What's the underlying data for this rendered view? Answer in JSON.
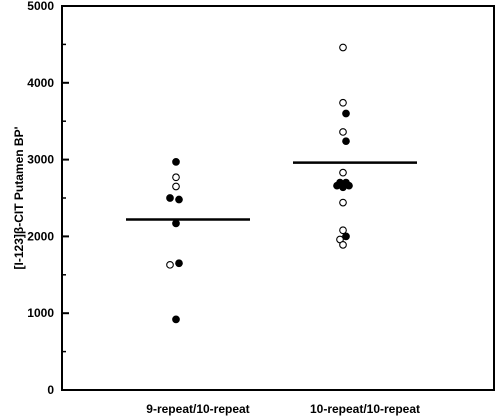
{
  "chart_data": {
    "type": "scatter",
    "title": "",
    "ylabel": "[I-123]β-CIT Putamen BP'",
    "xlabel": "",
    "ylim": [
      0,
      5000
    ],
    "yticks": [
      0,
      1000,
      2000,
      3000,
      4000,
      5000
    ],
    "ytick_labels": [
      "0",
      "1000",
      "2000",
      "3000",
      "4000",
      "5000"
    ],
    "categories": [
      "9-repeat/10-repeat",
      "10-repeat/10-repeat"
    ],
    "grid": false,
    "legend": "none",
    "series": [
      {
        "marker": "filled-circle",
        "points": [
          {
            "category": 0,
            "offset": 0.0,
            "y": 2970
          },
          {
            "category": 0,
            "offset": -0.1,
            "y": 2500
          },
          {
            "category": 0,
            "offset": 0.05,
            "y": 2480
          },
          {
            "category": 0,
            "offset": 0.0,
            "y": 2170
          },
          {
            "category": 0,
            "offset": 0.05,
            "y": 1650
          },
          {
            "category": 0,
            "offset": 0.0,
            "y": 920
          },
          {
            "category": 1,
            "offset": 0.05,
            "y": 3600
          },
          {
            "category": 1,
            "offset": 0.05,
            "y": 3240
          },
          {
            "category": 1,
            "offset": -0.05,
            "y": 2700
          },
          {
            "category": 1,
            "offset": 0.05,
            "y": 2700
          },
          {
            "category": 1,
            "offset": -0.1,
            "y": 2660
          },
          {
            "category": 1,
            "offset": 0.0,
            "y": 2640
          },
          {
            "category": 1,
            "offset": 0.1,
            "y": 2660
          },
          {
            "category": 1,
            "offset": 0.05,
            "y": 2000
          }
        ]
      },
      {
        "marker": "open-circle",
        "points": [
          {
            "category": 0,
            "offset": 0.0,
            "y": 2770
          },
          {
            "category": 0,
            "offset": 0.0,
            "y": 2650
          },
          {
            "category": 0,
            "offset": -0.1,
            "y": 1630
          },
          {
            "category": 1,
            "offset": 0.0,
            "y": 4460
          },
          {
            "category": 1,
            "offset": 0.0,
            "y": 3740
          },
          {
            "category": 1,
            "offset": 0.0,
            "y": 3360
          },
          {
            "category": 1,
            "offset": 0.0,
            "y": 2830
          },
          {
            "category": 1,
            "offset": 0.0,
            "y": 2440
          },
          {
            "category": 1,
            "offset": 0.0,
            "y": 2080
          },
          {
            "category": 1,
            "offset": -0.05,
            "y": 1960
          },
          {
            "category": 1,
            "offset": 0.0,
            "y": 1890
          }
        ]
      }
    ],
    "means": [
      {
        "category": 0,
        "y": 2220
      },
      {
        "category": 1,
        "y": 2960
      }
    ]
  }
}
